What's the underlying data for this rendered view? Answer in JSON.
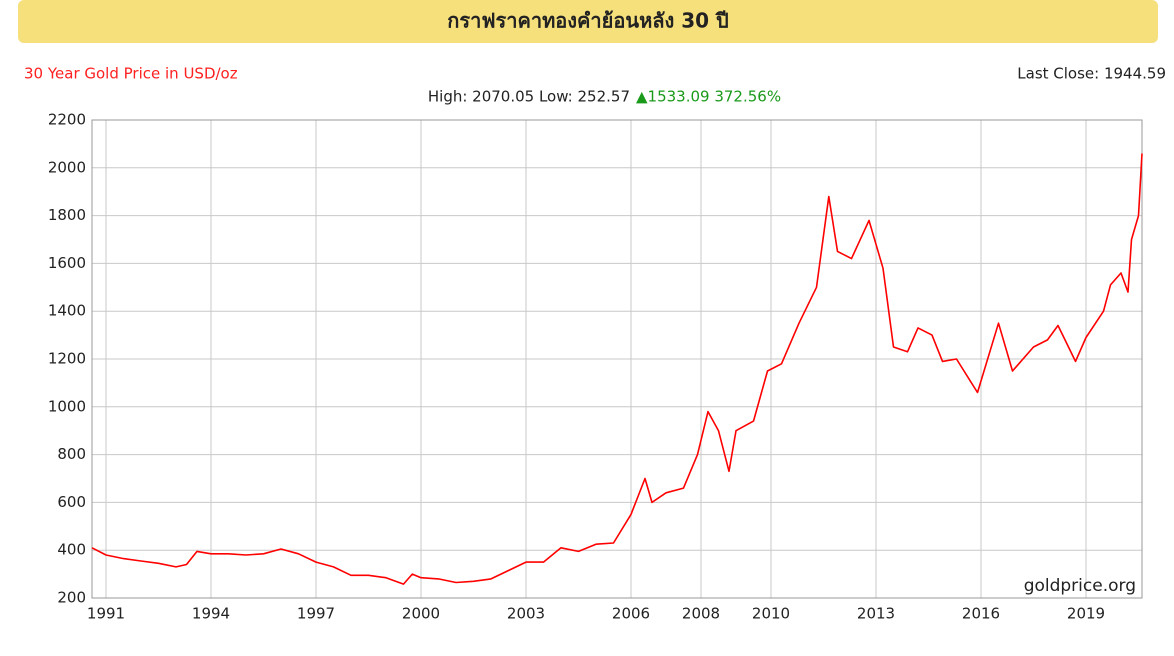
{
  "header": {
    "title": "กราฟราคาทองคำย้อนหลัง 30 ปี"
  },
  "chart_data": {
    "type": "line",
    "title": "30 Year Gold Price in USD/oz",
    "last_close": "Last Close: 1944.59",
    "stats": "High: 2070.05 Low: 252.57",
    "change": "▲1533.09 372.56%",
    "source": "goldprice.org",
    "x": [
      1990.6,
      1991.0,
      1991.5,
      1992.0,
      1992.5,
      1993.0,
      1993.3,
      1993.6,
      1994.0,
      1994.5,
      1995.0,
      1995.5,
      1996.0,
      1996.5,
      1997.0,
      1997.5,
      1998.0,
      1998.5,
      1999.0,
      1999.5,
      1999.75,
      2000.0,
      2000.5,
      2001.0,
      2001.5,
      2002.0,
      2002.5,
      2003.0,
      2003.5,
      2004.0,
      2004.5,
      2005.0,
      2005.5,
      2006.0,
      2006.4,
      2006.6,
      2007.0,
      2007.5,
      2007.9,
      2008.2,
      2008.5,
      2008.8,
      2009.0,
      2009.5,
      2009.9,
      2010.3,
      2010.8,
      2011.3,
      2011.65,
      2011.9,
      2012.3,
      2012.8,
      2013.2,
      2013.5,
      2013.9,
      2014.2,
      2014.6,
      2014.9,
      2015.3,
      2015.9,
      2016.5,
      2016.9,
      2017.5,
      2017.9,
      2018.2,
      2018.7,
      2019.0,
      2019.5,
      2019.7,
      2020.0,
      2020.2,
      2020.3,
      2020.5,
      2020.6
    ],
    "series": [
      {
        "name": "Gold",
        "color": "#ff0000",
        "values": [
          410,
          380,
          365,
          355,
          345,
          330,
          340,
          395,
          385,
          385,
          380,
          385,
          405,
          385,
          350,
          330,
          295,
          295,
          285,
          258,
          300,
          285,
          280,
          265,
          270,
          280,
          315,
          350,
          350,
          410,
          395,
          425,
          430,
          550,
          700,
          600,
          640,
          660,
          800,
          980,
          900,
          730,
          900,
          940,
          1150,
          1180,
          1350,
          1500,
          1880,
          1650,
          1620,
          1780,
          1580,
          1250,
          1230,
          1330,
          1300,
          1190,
          1200,
          1060,
          1350,
          1150,
          1250,
          1280,
          1340,
          1190,
          1290,
          1400,
          1510,
          1560,
          1480,
          1700,
          1800,
          2060
        ]
      }
    ],
    "xlim": [
      1990.6,
      2020.6
    ],
    "xticks": [
      1991,
      1994,
      1997,
      2000,
      2003,
      2006,
      2008,
      2010,
      2013,
      2016,
      2019
    ],
    "ylim": [
      200,
      2200
    ],
    "yticks": [
      200,
      400,
      600,
      800,
      1000,
      1200,
      1400,
      1600,
      1800,
      2000,
      2200
    ],
    "grid": true
  }
}
